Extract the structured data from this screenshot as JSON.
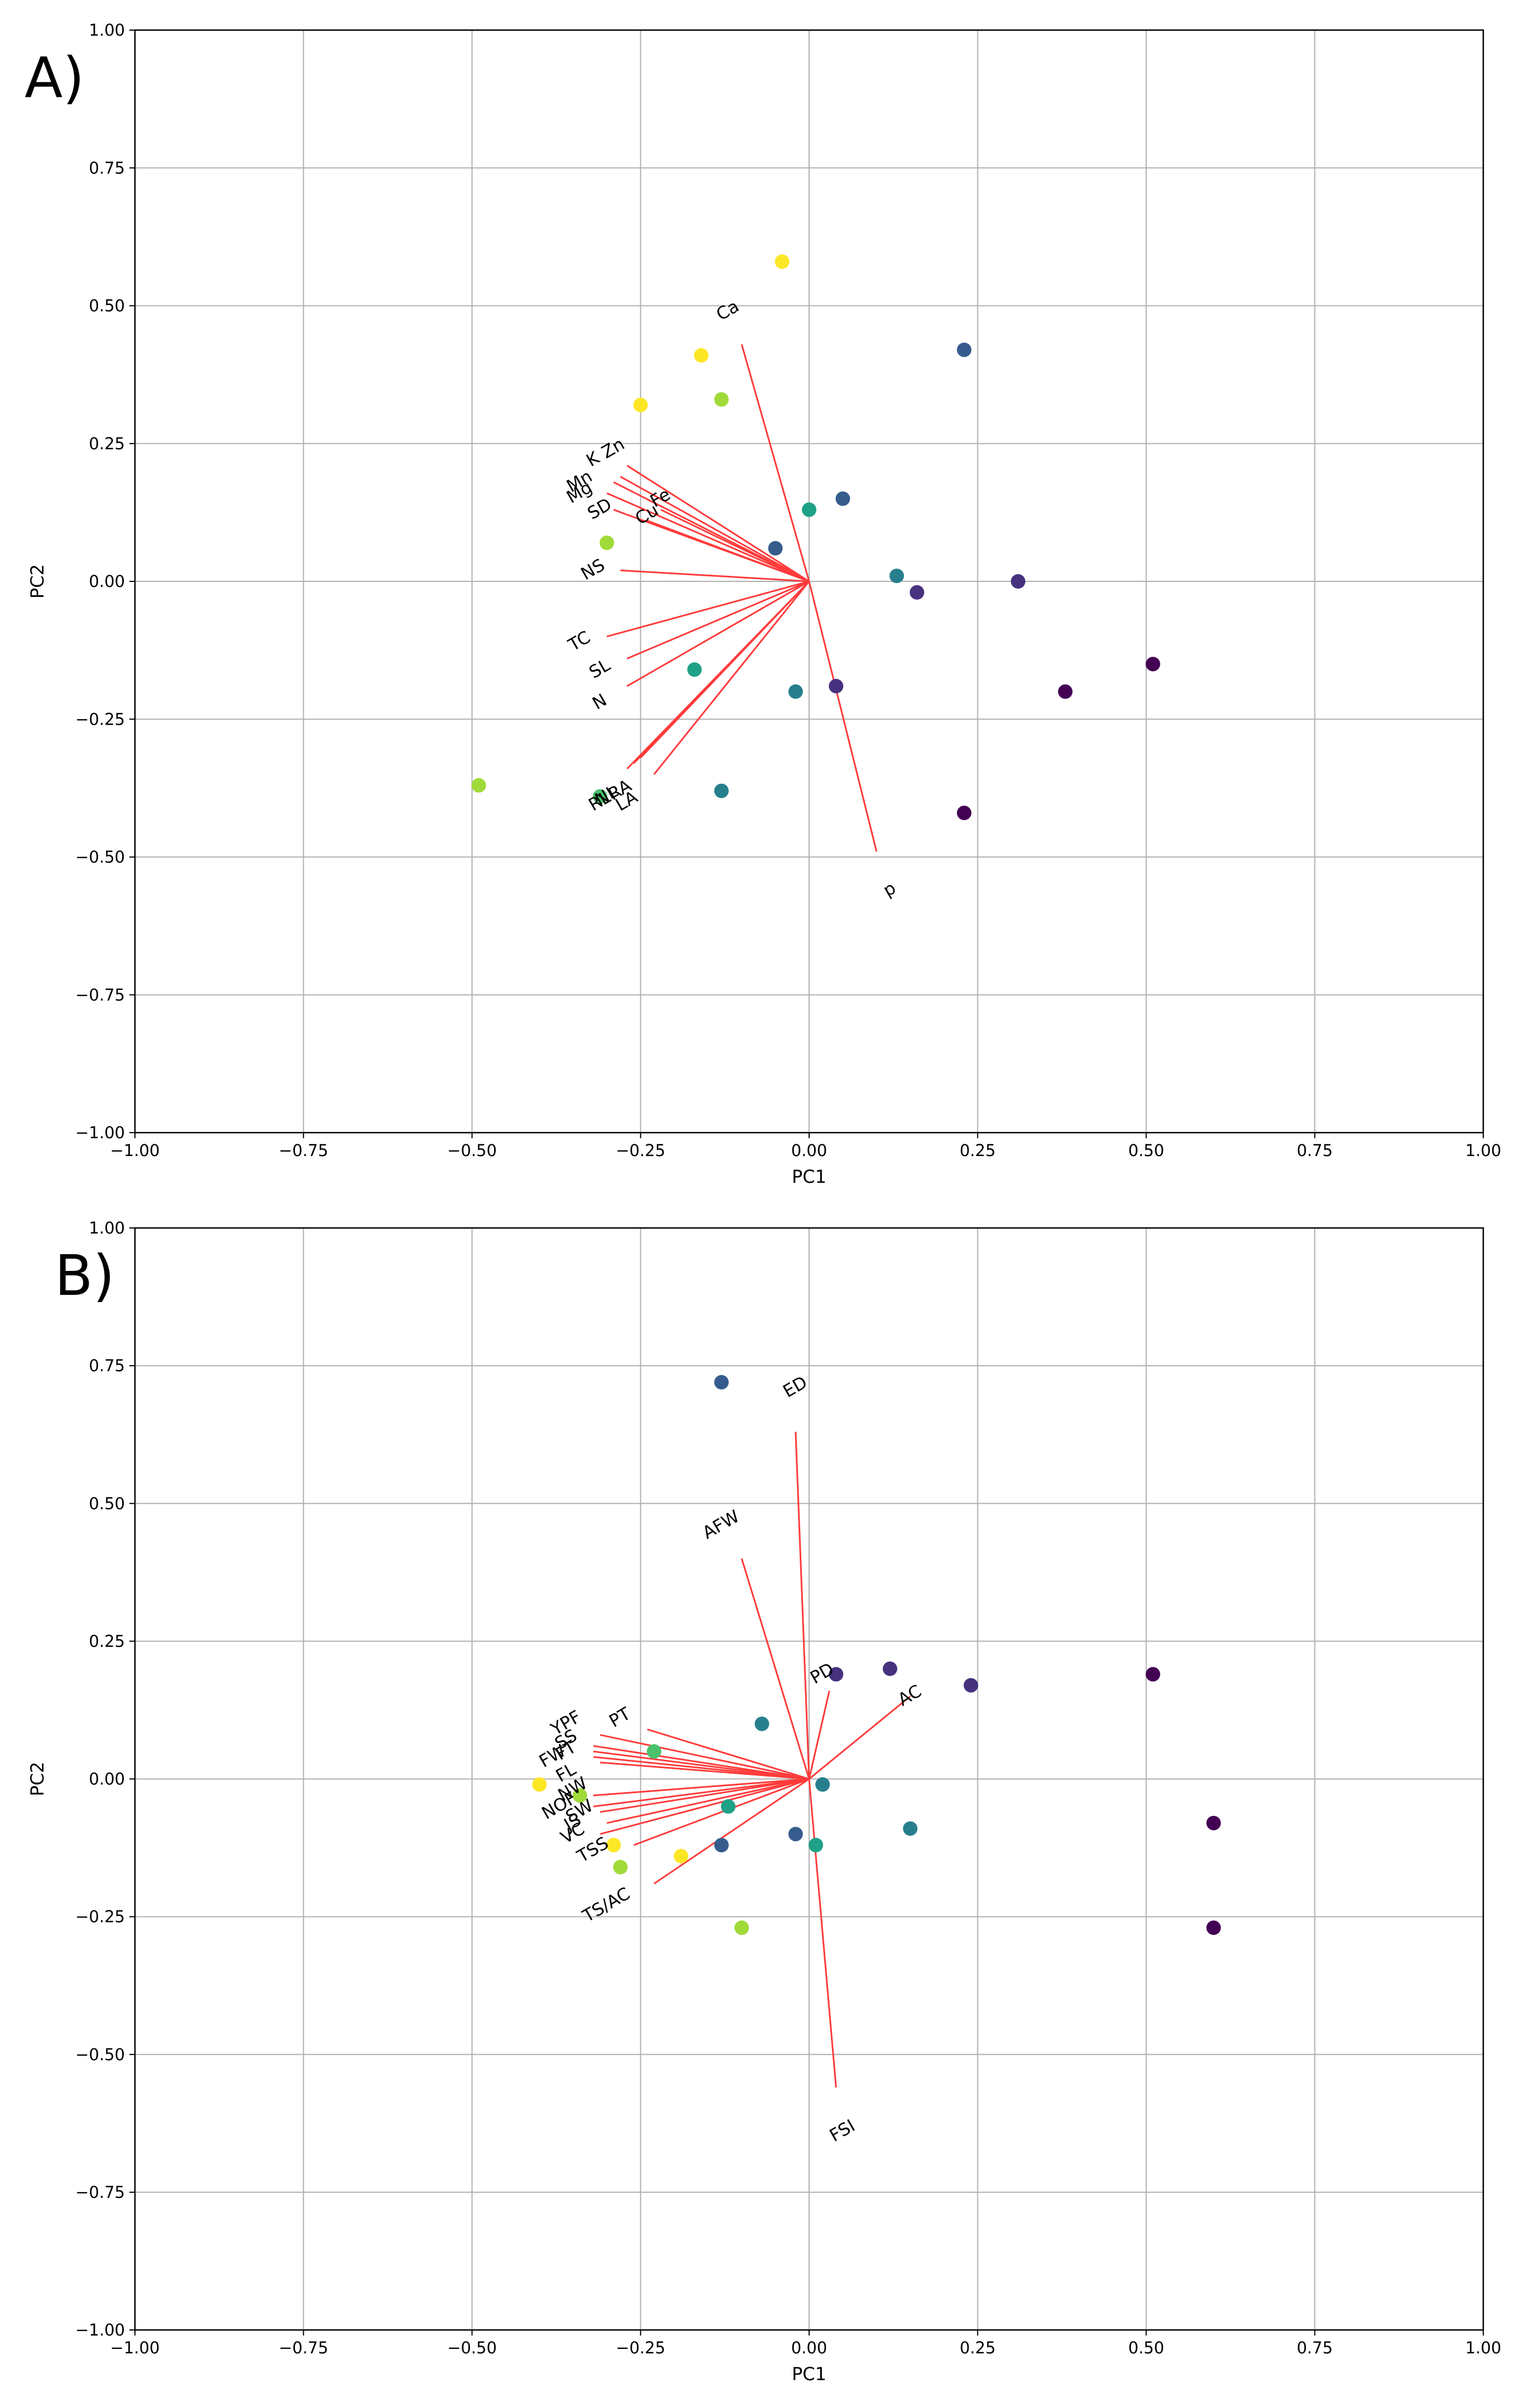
{
  "colors": {
    "vector": "#ff3b3b",
    "grid": "#b0b0b0",
    "axis": "#000000",
    "palette": [
      "#440154",
      "#46327e",
      "#365c8d",
      "#277f8e",
      "#1fa187",
      "#4ac16d",
      "#a0da39",
      "#fde725"
    ]
  },
  "chart_data": [
    {
      "type": "scatter",
      "panel_label": "A)",
      "xlabel": "PC1",
      "ylabel": "PC2",
      "xlim": [
        -1.0,
        1.0
      ],
      "ylim": [
        -1.0,
        1.0
      ],
      "xticks": [
        "−1.00",
        "−0.75",
        "−0.50",
        "−0.25",
        "0.00",
        "0.25",
        "0.50",
        "0.75",
        "1.00"
      ],
      "yticks": [
        "−1.00",
        "−0.75",
        "−0.50",
        "−0.25",
        "0.00",
        "0.25",
        "0.50",
        "0.75",
        "1.00"
      ],
      "grid": true,
      "points": [
        {
          "x": -0.04,
          "y": 0.58,
          "color": "#fde725"
        },
        {
          "x": -0.16,
          "y": 0.41,
          "color": "#fde725"
        },
        {
          "x": -0.25,
          "y": 0.32,
          "color": "#fde725"
        },
        {
          "x": -0.13,
          "y": 0.33,
          "color": "#a0da39"
        },
        {
          "x": -0.3,
          "y": 0.07,
          "color": "#a0da39"
        },
        {
          "x": -0.49,
          "y": -0.37,
          "color": "#a0da39"
        },
        {
          "x": -0.31,
          "y": -0.39,
          "color": "#4ac16d"
        },
        {
          "x": 0.0,
          "y": 0.13,
          "color": "#1fa187"
        },
        {
          "x": -0.17,
          "y": -0.16,
          "color": "#1fa187"
        },
        {
          "x": 0.13,
          "y": 0.01,
          "color": "#277f8e"
        },
        {
          "x": -0.02,
          "y": -0.2,
          "color": "#277f8e"
        },
        {
          "x": -0.13,
          "y": -0.38,
          "color": "#277f8e"
        },
        {
          "x": 0.23,
          "y": 0.42,
          "color": "#365c8d"
        },
        {
          "x": 0.05,
          "y": 0.15,
          "color": "#365c8d"
        },
        {
          "x": -0.05,
          "y": 0.06,
          "color": "#365c8d"
        },
        {
          "x": 0.16,
          "y": -0.02,
          "color": "#46327e"
        },
        {
          "x": 0.31,
          "y": 0.0,
          "color": "#46327e"
        },
        {
          "x": 0.04,
          "y": -0.19,
          "color": "#46327e"
        },
        {
          "x": 0.38,
          "y": -0.2,
          "color": "#440154"
        },
        {
          "x": 0.51,
          "y": -0.15,
          "color": "#440154"
        },
        {
          "x": 0.23,
          "y": -0.42,
          "color": "#440154"
        }
      ],
      "loadings": [
        {
          "label": "Ca",
          "x": -0.1,
          "y": 0.43,
          "lx": -0.12,
          "ly": 0.49
        },
        {
          "label": "K",
          "x": -0.27,
          "y": 0.21,
          "lx": -0.32,
          "ly": 0.22
        },
        {
          "label": "Zn",
          "x": -0.28,
          "y": 0.19,
          "lx": -0.29,
          "ly": 0.24
        },
        {
          "label": "Mn",
          "x": -0.29,
          "y": 0.18,
          "lx": -0.34,
          "ly": 0.18
        },
        {
          "label": "Mg",
          "x": -0.3,
          "y": 0.16,
          "lx": -0.34,
          "ly": 0.16
        },
        {
          "label": "SD",
          "x": -0.29,
          "y": 0.13,
          "lx": -0.31,
          "ly": 0.13
        },
        {
          "label": "Cu",
          "x": -0.24,
          "y": 0.11,
          "lx": -0.24,
          "ly": 0.12
        },
        {
          "label": "Fe",
          "x": -0.22,
          "y": 0.13,
          "lx": -0.22,
          "ly": 0.15
        },
        {
          "label": "NS",
          "x": -0.28,
          "y": 0.02,
          "lx": -0.32,
          "ly": 0.02
        },
        {
          "label": "TC",
          "x": -0.3,
          "y": -0.1,
          "lx": -0.34,
          "ly": -0.11
        },
        {
          "label": "SL",
          "x": -0.27,
          "y": -0.14,
          "lx": -0.31,
          "ly": -0.16
        },
        {
          "label": "N",
          "x": -0.27,
          "y": -0.19,
          "lx": -0.31,
          "ly": -0.22
        },
        {
          "label": "RL",
          "x": -0.27,
          "y": -0.34,
          "lx": -0.31,
          "ly": -0.4
        },
        {
          "label": "NL",
          "x": -0.26,
          "y": -0.33,
          "lx": -0.3,
          "ly": -0.39
        },
        {
          "label": "RA",
          "x": -0.25,
          "y": -0.32,
          "lx": -0.28,
          "ly": -0.38
        },
        {
          "label": "LA",
          "x": -0.23,
          "y": -0.35,
          "lx": -0.27,
          "ly": -0.4
        },
        {
          "label": "p",
          "x": 0.1,
          "y": -0.49,
          "lx": 0.12,
          "ly": -0.56
        }
      ]
    },
    {
      "type": "scatter",
      "panel_label": "B)",
      "xlabel": "PC1",
      "ylabel": "PC2",
      "xlim": [
        -1.0,
        1.0
      ],
      "ylim": [
        -1.0,
        1.0
      ],
      "xticks": [
        "−1.00",
        "−0.75",
        "−0.50",
        "−0.25",
        "0.00",
        "0.25",
        "0.50",
        "0.75",
        "1.00"
      ],
      "yticks": [
        "−1.00",
        "−0.75",
        "−0.50",
        "−0.25",
        "0.00",
        "0.25",
        "0.50",
        "0.75",
        "1.00"
      ],
      "grid": true,
      "points": [
        {
          "x": -0.4,
          "y": -0.01,
          "color": "#fde725"
        },
        {
          "x": -0.29,
          "y": -0.12,
          "color": "#fde725"
        },
        {
          "x": -0.19,
          "y": -0.14,
          "color": "#fde725"
        },
        {
          "x": -0.34,
          "y": -0.03,
          "color": "#a0da39"
        },
        {
          "x": -0.28,
          "y": -0.16,
          "color": "#a0da39"
        },
        {
          "x": -0.1,
          "y": -0.27,
          "color": "#a0da39"
        },
        {
          "x": -0.23,
          "y": 0.05,
          "color": "#4ac16d"
        },
        {
          "x": -0.12,
          "y": -0.05,
          "color": "#1fa187"
        },
        {
          "x": 0.01,
          "y": -0.12,
          "color": "#1fa187"
        },
        {
          "x": -0.07,
          "y": 0.1,
          "color": "#277f8e"
        },
        {
          "x": 0.02,
          "y": -0.01,
          "color": "#277f8e"
        },
        {
          "x": 0.15,
          "y": -0.09,
          "color": "#277f8e"
        },
        {
          "x": -0.13,
          "y": 0.72,
          "color": "#365c8d"
        },
        {
          "x": -0.13,
          "y": -0.12,
          "color": "#365c8d"
        },
        {
          "x": -0.02,
          "y": -0.1,
          "color": "#365c8d"
        },
        {
          "x": 0.12,
          "y": 0.2,
          "color": "#46327e"
        },
        {
          "x": 0.24,
          "y": 0.17,
          "color": "#46327e"
        },
        {
          "x": 0.04,
          "y": 0.19,
          "color": "#46327e"
        },
        {
          "x": 0.51,
          "y": 0.19,
          "color": "#440154"
        },
        {
          "x": 0.6,
          "y": -0.08,
          "color": "#440154"
        },
        {
          "x": 0.6,
          "y": -0.27,
          "color": "#440154"
        }
      ],
      "loadings": [
        {
          "label": "ED",
          "x": -0.02,
          "y": 0.63,
          "lx": -0.02,
          "ly": 0.71
        },
        {
          "label": "AFW",
          "x": -0.1,
          "y": 0.4,
          "lx": -0.13,
          "ly": 0.46
        },
        {
          "label": "PD",
          "x": 0.03,
          "y": 0.16,
          "lx": 0.02,
          "ly": 0.19
        },
        {
          "label": "AC",
          "x": 0.15,
          "y": 0.15,
          "lx": 0.15,
          "ly": 0.15
        },
        {
          "label": "PT",
          "x": -0.24,
          "y": 0.09,
          "lx": -0.28,
          "ly": 0.11
        },
        {
          "label": "YPF",
          "x": -0.31,
          "y": 0.08,
          "lx": -0.36,
          "ly": 0.1
        },
        {
          "label": "SS",
          "x": -0.32,
          "y": 0.06,
          "lx": -0.36,
          "ly": 0.07
        },
        {
          "label": "FW",
          "x": -0.32,
          "y": 0.05,
          "lx": -0.38,
          "ly": 0.04
        },
        {
          "label": "FT",
          "x": -0.32,
          "y": 0.04,
          "lx": -0.36,
          "ly": 0.05
        },
        {
          "label": "FL",
          "x": -0.31,
          "y": 0.03,
          "lx": -0.36,
          "ly": 0.01
        },
        {
          "label": "NW",
          "x": -0.32,
          "y": -0.03,
          "lx": -0.35,
          "ly": -0.02
        },
        {
          "label": "NOF",
          "x": -0.32,
          "y": -0.05,
          "lx": -0.37,
          "ly": -0.05
        },
        {
          "label": "SW",
          "x": -0.31,
          "y": -0.06,
          "lx": -0.34,
          "ly": -0.06
        },
        {
          "label": "JS",
          "x": -0.3,
          "y": -0.08,
          "lx": -0.35,
          "ly": -0.08
        },
        {
          "label": "VC",
          "x": -0.31,
          "y": -0.1,
          "lx": -0.35,
          "ly": -0.1
        },
        {
          "label": "TSS",
          "x": -0.26,
          "y": -0.12,
          "lx": -0.32,
          "ly": -0.13
        },
        {
          "label": "TS/AC",
          "x": -0.23,
          "y": -0.19,
          "lx": -0.3,
          "ly": -0.23
        },
        {
          "label": "FSI",
          "x": 0.04,
          "y": -0.56,
          "lx": 0.05,
          "ly": -0.64
        }
      ]
    }
  ]
}
